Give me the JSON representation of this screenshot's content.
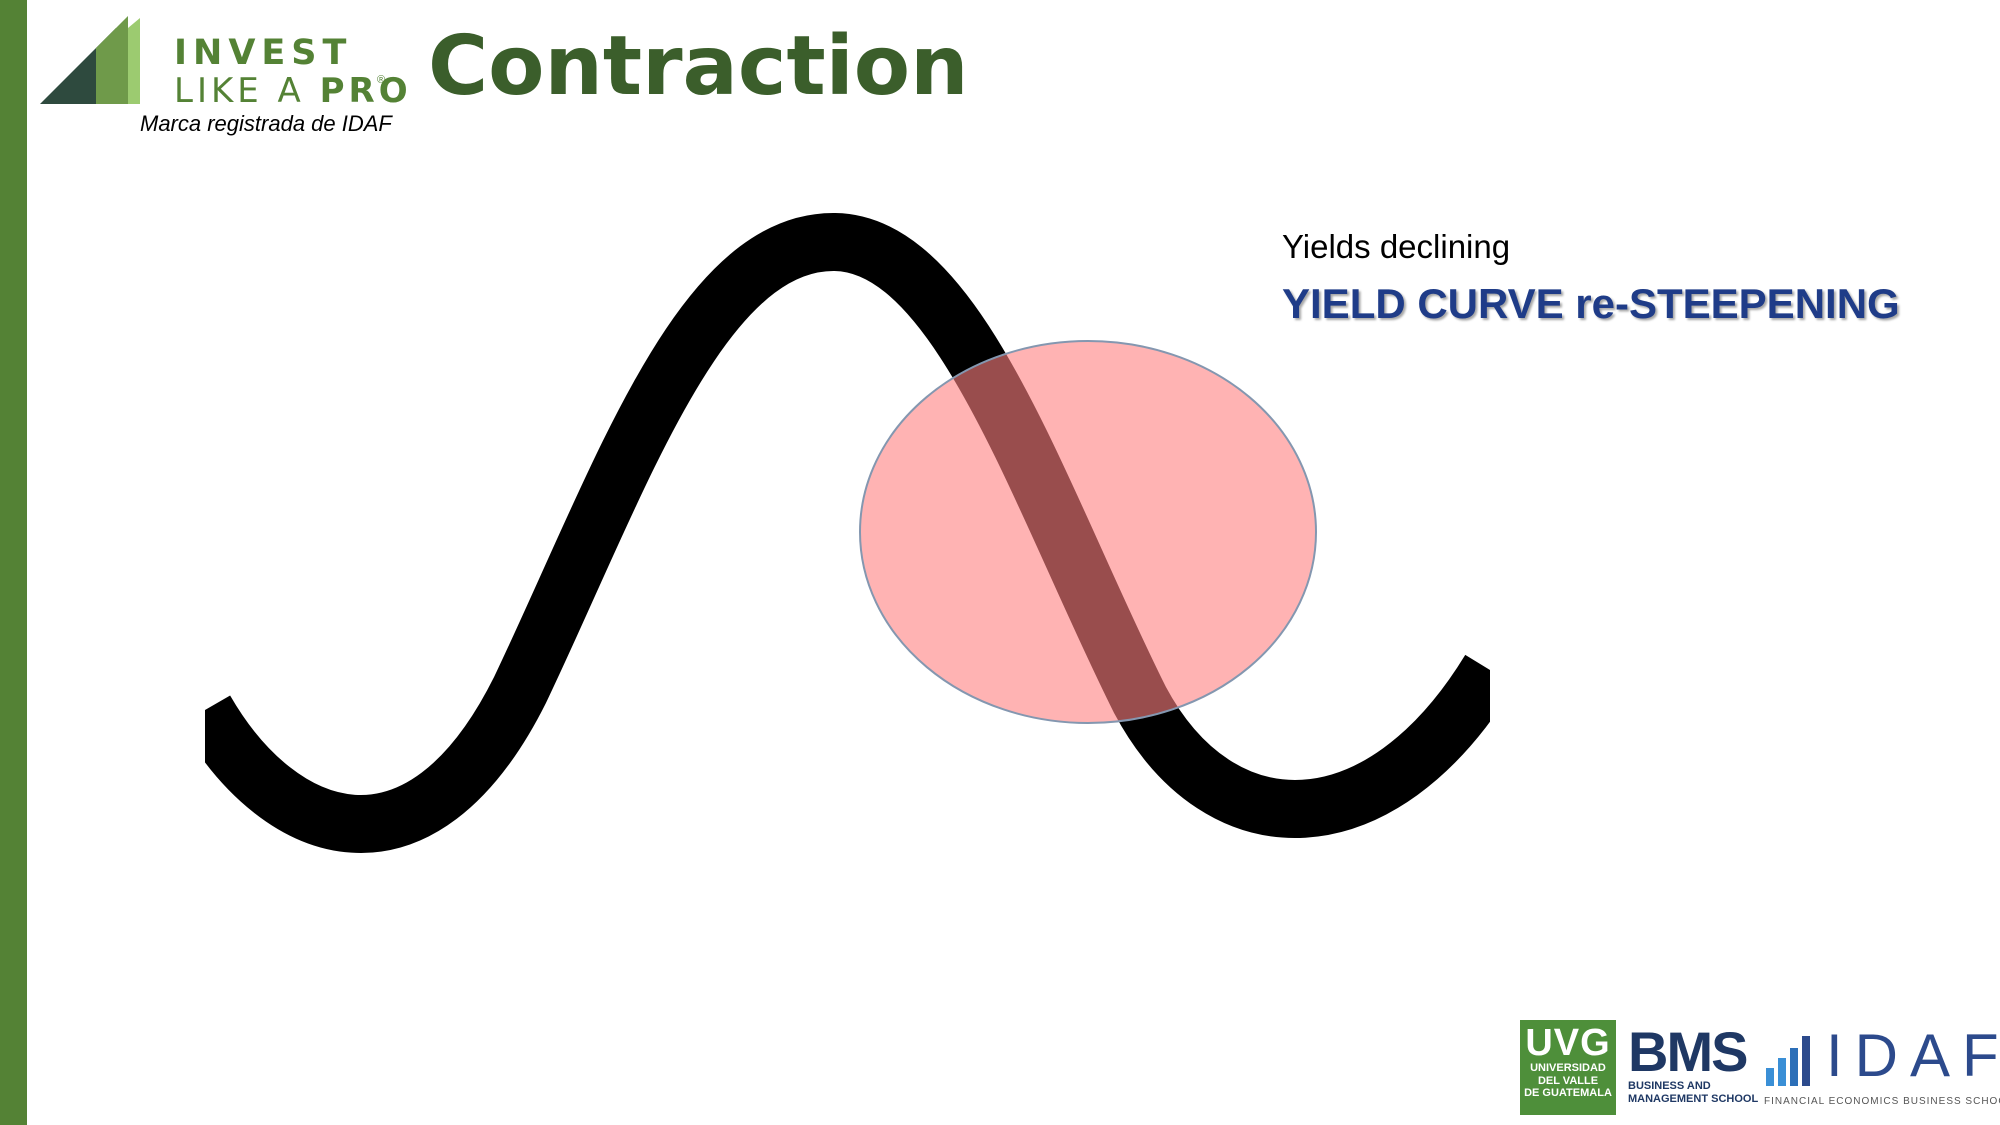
{
  "logo": {
    "line1": "INVEST",
    "line2": "LIKE A",
    "line2_bold": "PRO",
    "registered": "®",
    "subtitle": "Marca registrada de IDAF"
  },
  "title": "Contraction",
  "annotation": {
    "yields": "Yields declining",
    "curve": "YIELD CURVE re-STEEPENING"
  },
  "footer": {
    "uvg": {
      "abbr": "UVG",
      "line1": "UNIVERSIDAD",
      "line2": "DEL VALLE",
      "line3": "DE GUATEMALA"
    },
    "bms": {
      "abbr": "BMS",
      "line1": "BUSINESS AND",
      "line2": "MANAGEMENT SCHOOL"
    },
    "idaf": {
      "abbr": "IDAF",
      "tagline": "FINANCIAL ECONOMICS BUSINESS SCHOOL"
    }
  },
  "colors": {
    "accent_green": "#548235",
    "title_green": "#3b5e2b",
    "label_blue": "#1f3c88",
    "highlight_fill": "#ffb3b3",
    "wave": "#000000"
  }
}
